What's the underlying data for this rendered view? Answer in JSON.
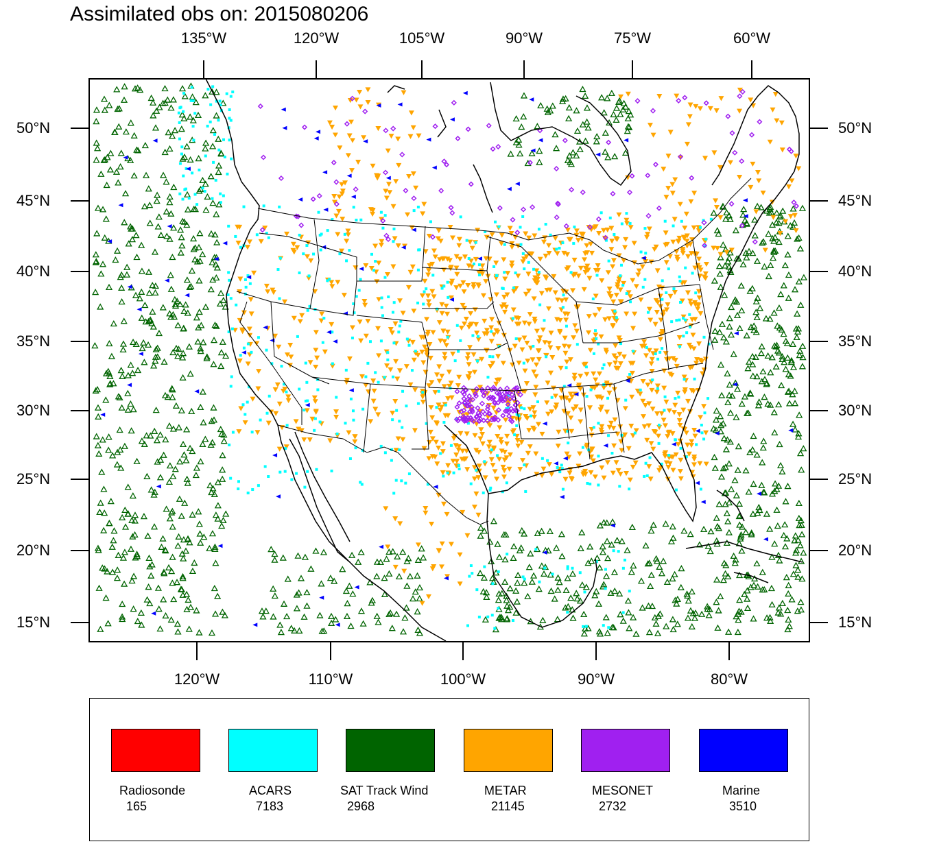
{
  "title": "Assimilated obs on: 2015080206",
  "top_axis": [
    "135°W",
    "120°W",
    "105°W",
    "90°W",
    "75°W",
    "60°W"
  ],
  "bottom_axis": [
    "120°W",
    "110°W",
    "100°W",
    "90°W",
    "80°W"
  ],
  "left_axis": [
    "50°N",
    "45°N",
    "40°N",
    "35°N",
    "30°N",
    "25°N",
    "20°N",
    "15°N"
  ],
  "right_axis": [
    "50°N",
    "45°N",
    "40°N",
    "35°N",
    "30°N",
    "25°N",
    "20°N",
    "15°N"
  ],
  "colors": {
    "radiosonde": "#ff0000",
    "acars": "#00ffff",
    "sat_track_wind": "#006400",
    "metar": "#ffa500",
    "mesonet": "#a020f0",
    "marine": "#0000ff"
  },
  "legend": [
    {
      "name": "Radiosonde",
      "count": "165",
      "color": "#ff0000"
    },
    {
      "name": "ACARS",
      "count": "7183",
      "color": "#00ffff"
    },
    {
      "name": "SAT Track Wind",
      "count": "2968",
      "color": "#006400"
    },
    {
      "name": "METAR",
      "count": "21145",
      "color": "#ffa500"
    },
    {
      "name": "MESONET",
      "count": "2732",
      "color": "#a020f0"
    },
    {
      "name": "Marine",
      "count": "3510",
      "color": "#0000ff"
    }
  ]
}
